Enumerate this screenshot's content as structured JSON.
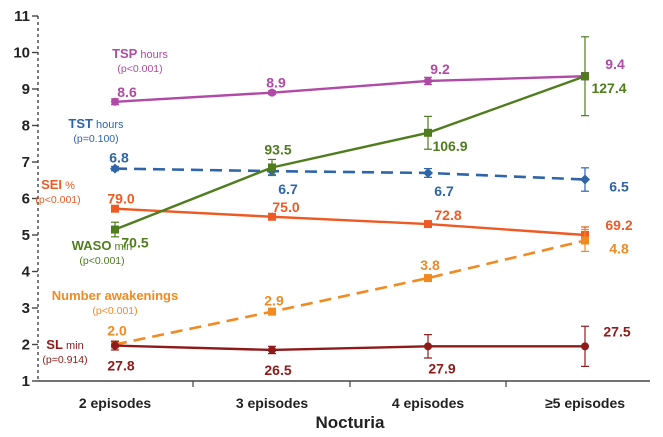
{
  "chart_data": {
    "type": "line",
    "title": "",
    "xlabel": "Nocturia",
    "ylabel": "",
    "ylim": [
      1,
      11
    ],
    "yticks": [
      1,
      2,
      3,
      4,
      5,
      6,
      7,
      8,
      9,
      10,
      11
    ],
    "categories": [
      "2 episodes",
      "3 episodes",
      "4 episodes",
      "≥5 episodes"
    ],
    "grid": false,
    "legend": "inline-left",
    "series": [
      {
        "name": "TSP",
        "unit": "hours",
        "pvalue": "(p<0.001)",
        "color": "#b04aa6",
        "dashed": false,
        "marker": "circle",
        "values": [
          8.65,
          8.9,
          9.22,
          9.35
        ],
        "errors": [
          0.08,
          0.05,
          0.1,
          0.1
        ],
        "labels": [
          "8.6",
          "8.9",
          "9.2",
          "9.4"
        ]
      },
      {
        "name": "TST",
        "unit": "hours",
        "pvalue": "(p=0.100)",
        "color": "#2e64a8",
        "dashed": true,
        "marker": "diamond",
        "values": [
          6.82,
          6.75,
          6.7,
          6.52
        ],
        "errors": [
          0.06,
          0.1,
          0.12,
          0.32
        ],
        "labels": [
          "6.8",
          "6.7",
          "6.7",
          "6.5"
        ]
      },
      {
        "name": "SEI",
        "unit": "%",
        "pvalue": "(p<0.001)",
        "color": "#ee5a24",
        "dashed": false,
        "marker": "square",
        "values": [
          5.72,
          5.5,
          5.3,
          5.0
        ],
        "errors": [
          0.05,
          0.04,
          0.05,
          0.22
        ],
        "labels": [
          "79.0",
          "75.0",
          "72.8",
          "69.2"
        ]
      },
      {
        "name": "WASO",
        "unit": "min",
        "pvalue": "(p<0.001)",
        "color": "#4f7d1d",
        "dashed": false,
        "marker": "square",
        "values": [
          5.15,
          6.85,
          7.8,
          9.35
        ],
        "errors": [
          0.2,
          0.22,
          0.45,
          1.08
        ],
        "labels": [
          "70.5",
          "93.5",
          "106.9",
          "127.4"
        ]
      },
      {
        "name": "Number awakenings",
        "unit": "",
        "pvalue": "(p<0.001)",
        "color": "#f28a22",
        "dashed": true,
        "marker": "square",
        "values": [
          2.0,
          2.9,
          3.82,
          4.85
        ],
        "errors": [
          0.06,
          0.05,
          0.06,
          0.3
        ],
        "labels": [
          "2.0",
          "2.9",
          "3.8",
          "4.8"
        ]
      },
      {
        "name": "SL",
        "unit": "min",
        "pvalue": "(p=0.914)",
        "color": "#8e1a1a",
        "dashed": false,
        "marker": "circle",
        "values": [
          1.97,
          1.85,
          1.95,
          1.95
        ],
        "errors": [
          0.12,
          0.1,
          0.32,
          0.55
        ],
        "labels": [
          "27.8",
          "26.5",
          "27.9",
          "27.5"
        ]
      }
    ]
  }
}
